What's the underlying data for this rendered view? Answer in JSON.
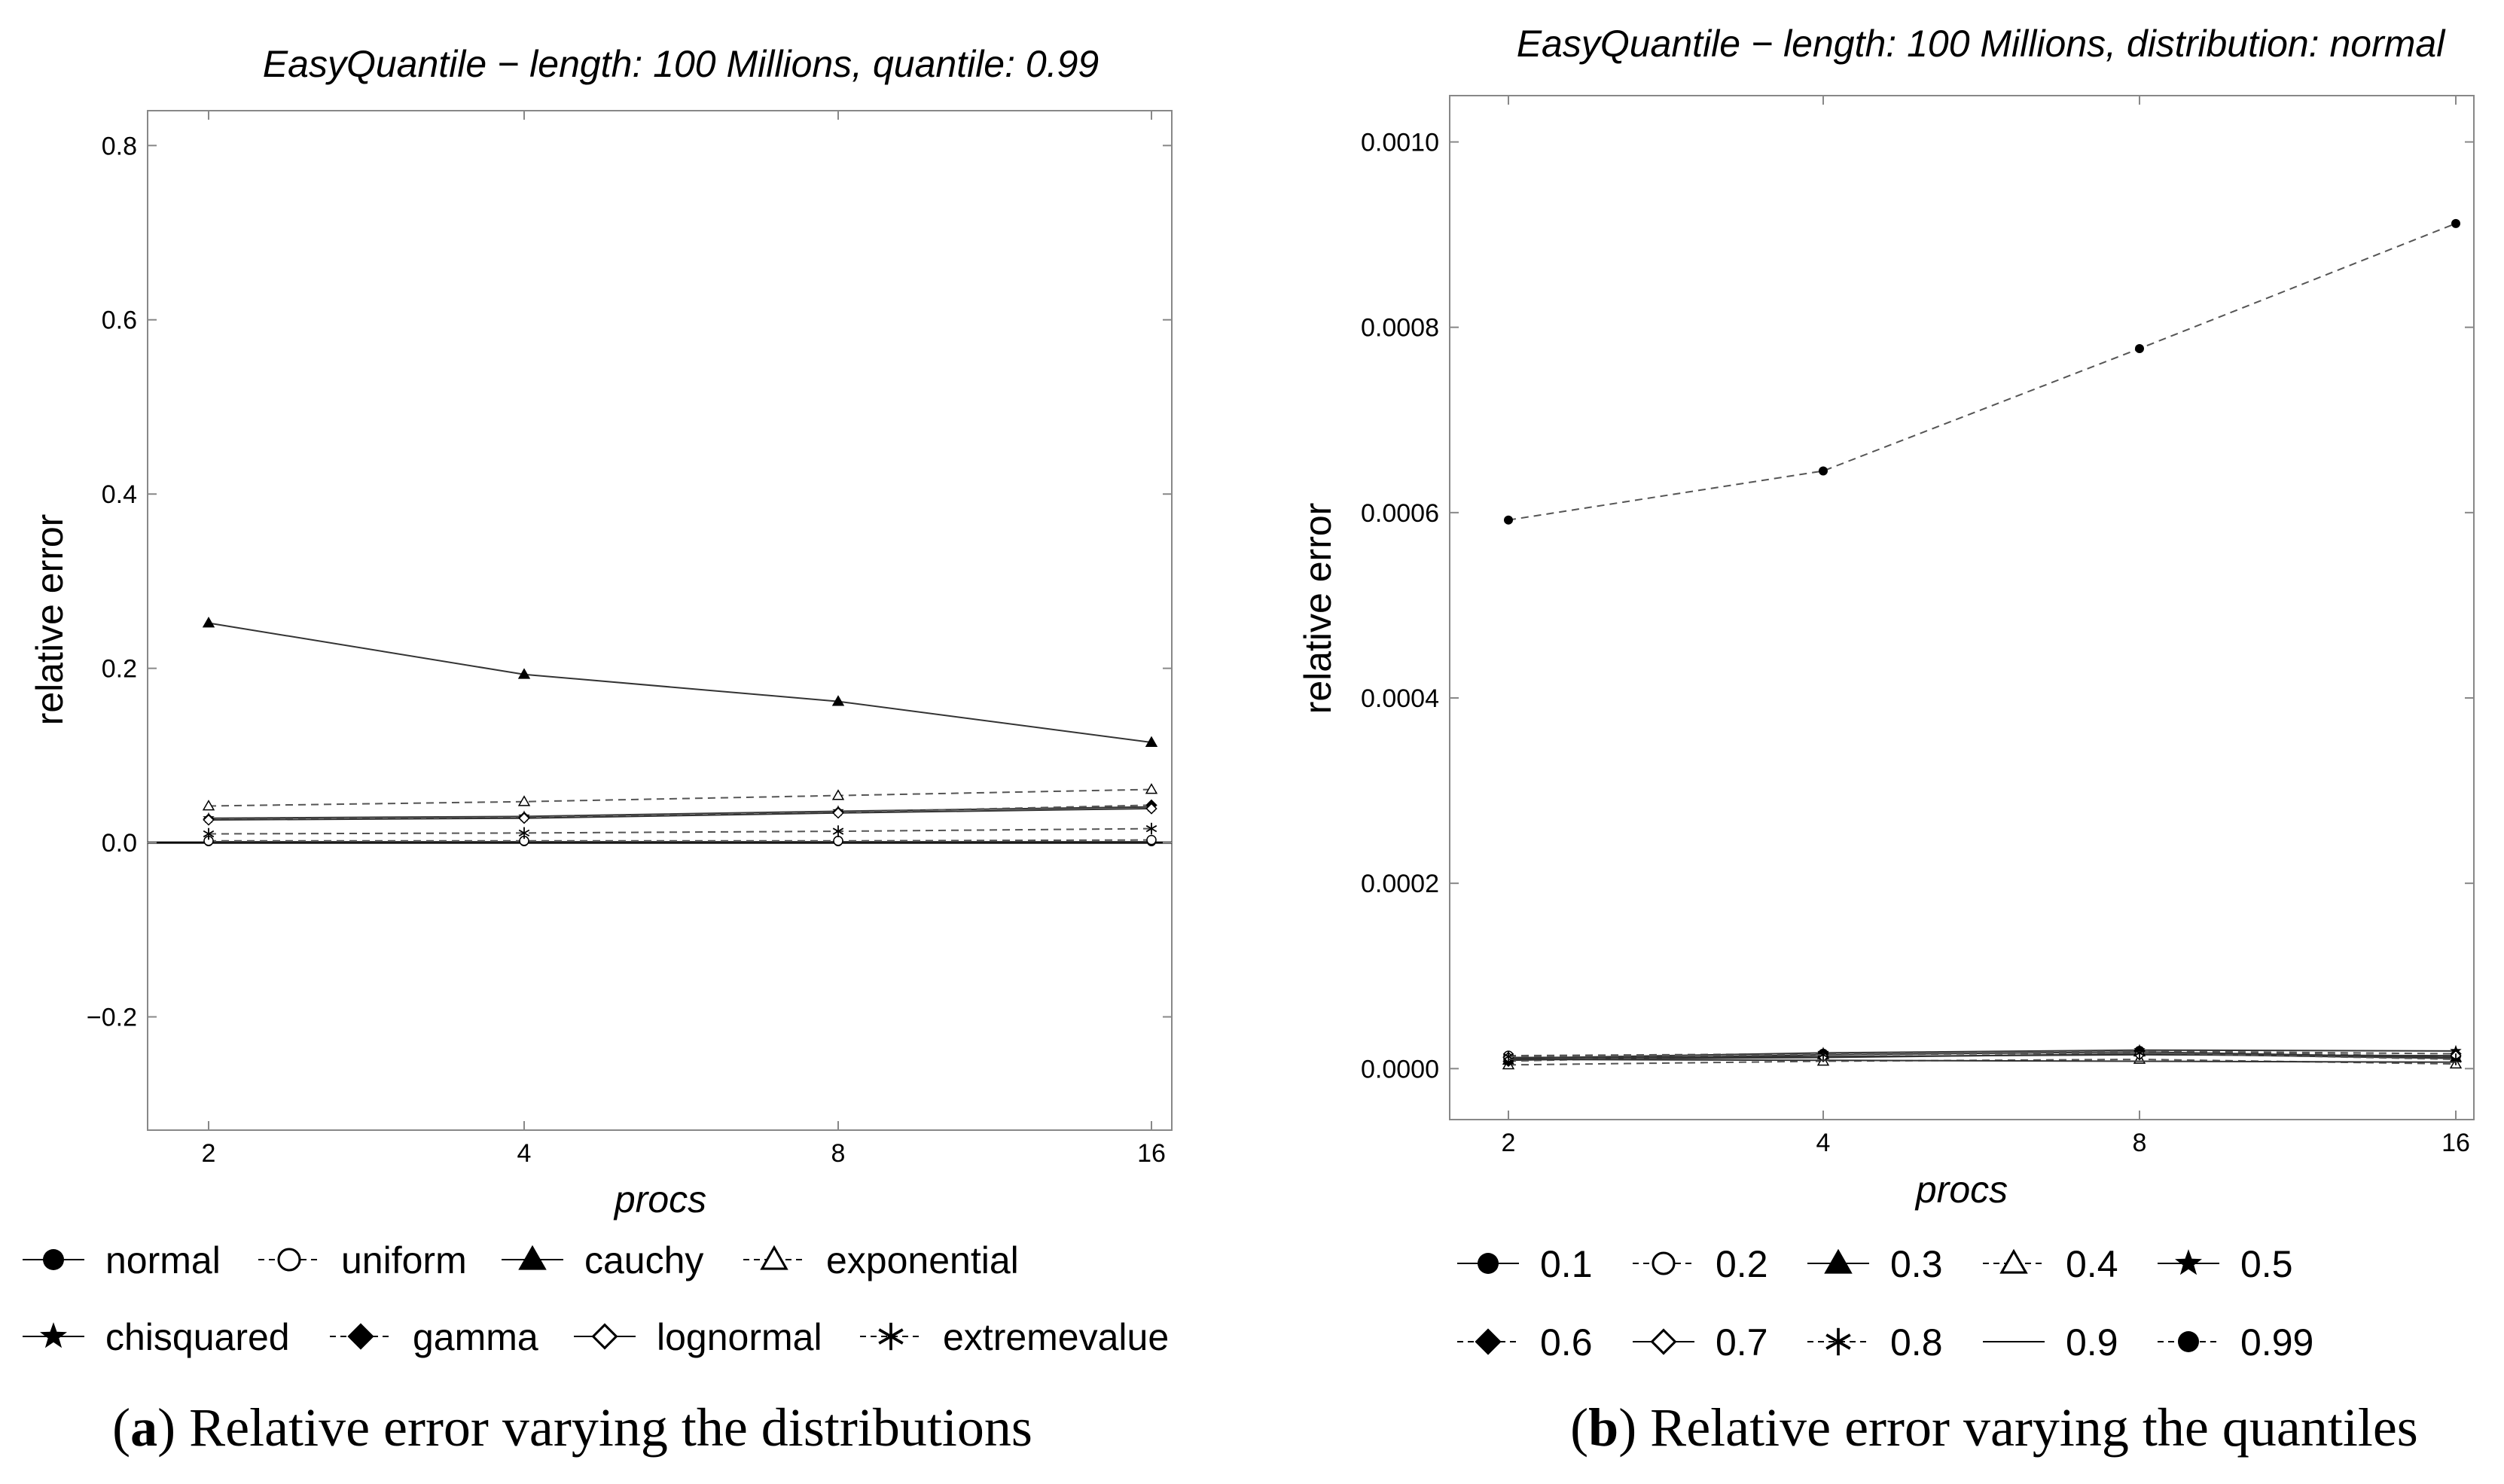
{
  "chart_data": [
    {
      "panel": "a",
      "type": "line",
      "title": "EasyQuantile − length: 100 Millions, quantile: 0.99",
      "xlabel": "procs",
      "ylabel": "relative error",
      "categories": [
        "2",
        "4",
        "8",
        "16"
      ],
      "ylim": [
        -0.33,
        0.84
      ],
      "yticks": [
        "-0.2",
        "0.0",
        "0.2",
        "0.4",
        "0.6",
        "0.8"
      ],
      "ytick_labels": [
        "−0.2",
        "0.0",
        "0.2",
        "0.4",
        "0.6",
        "0.8"
      ],
      "zero_line": true,
      "series": [
        {
          "name": "normal",
          "marker": "filled-circle",
          "dash": "solid",
          "values": [
            0.001,
            0.001,
            0.001,
            0.001
          ]
        },
        {
          "name": "uniform",
          "marker": "open-circle",
          "dash": "dashed",
          "values": [
            0.002,
            0.002,
            0.002,
            0.003
          ]
        },
        {
          "name": "cauchy",
          "marker": "filled-triangle",
          "dash": "solid",
          "values": [
            0.252,
            0.193,
            0.162,
            0.115
          ]
        },
        {
          "name": "exponential",
          "marker": "open-triangle",
          "dash": "dashed",
          "values": [
            0.042,
            0.047,
            0.054,
            0.061
          ]
        },
        {
          "name": "chisquared",
          "marker": "filled-star",
          "dash": "solid",
          "values": [
            0.028,
            0.03,
            0.036,
            0.041
          ]
        },
        {
          "name": "gamma",
          "marker": "filled-diamond",
          "dash": "dashed",
          "values": [
            0.027,
            0.029,
            0.035,
            0.043
          ]
        },
        {
          "name": "lognormal",
          "marker": "open-diamond",
          "dash": "solid",
          "values": [
            0.026,
            0.028,
            0.034,
            0.039
          ]
        },
        {
          "name": "extremevalue",
          "marker": "asterisk",
          "dash": "dashed",
          "values": [
            0.01,
            0.011,
            0.013,
            0.016
          ]
        }
      ],
      "legend_rows": [
        [
          "normal",
          "uniform",
          "cauchy",
          "exponential"
        ],
        [
          "chisquared",
          "gamma",
          "lognormal",
          "extremevalue"
        ]
      ],
      "caption_letter": "a",
      "caption_text": ") Relative error varying the distributions"
    },
    {
      "panel": "b",
      "type": "line",
      "title": "EasyQuantile − length: 100 Millions, distribution: normal",
      "xlabel": "procs",
      "ylabel": "relative error",
      "categories": [
        "2",
        "4",
        "8",
        "16"
      ],
      "ylim": [
        -5.5e-05,
        0.00105
      ],
      "yticks": [
        "0",
        "0.0002",
        "0.0004",
        "0.0006",
        "0.0008",
        "0.001"
      ],
      "ytick_labels": [
        "0.0000",
        "0.0002",
        "0.0004",
        "0.0006",
        "0.0008",
        "0.0010"
      ],
      "zero_line": false,
      "series": [
        {
          "name": "0.1",
          "marker": "filled-circle",
          "dash": "solid",
          "values": [
            1e-05,
            1.2e-05,
            1.6e-05,
            1.1e-05
          ]
        },
        {
          "name": "0.2",
          "marker": "open-circle",
          "dash": "dashed",
          "values": [
            1.4e-05,
            1.6e-05,
            1.9e-05,
            1.3e-05
          ]
        },
        {
          "name": "0.3",
          "marker": "filled-triangle",
          "dash": "solid",
          "values": [
            9e-06,
            1.5e-05,
            1.8e-05,
            1.2e-05
          ]
        },
        {
          "name": "0.4",
          "marker": "open-triangle",
          "dash": "dashed",
          "values": [
            4e-06,
            8e-06,
            1e-05,
            5e-06
          ]
        },
        {
          "name": "0.5",
          "marker": "filled-star",
          "dash": "solid",
          "values": [
            1.1e-05,
            1.7e-05,
            2e-05,
            1.9e-05
          ]
        },
        {
          "name": "0.6",
          "marker": "filled-diamond",
          "dash": "dashed",
          "values": [
            8e-06,
            1.6e-05,
            1.9e-05,
            1.6e-05
          ]
        },
        {
          "name": "0.7",
          "marker": "open-diamond",
          "dash": "solid",
          "values": [
            1.2e-05,
            1.3e-05,
            1.5e-05,
            1.4e-05
          ]
        },
        {
          "name": "0.8",
          "marker": "asterisk",
          "dash": "dashed",
          "values": [
            1.3e-05,
            1.5e-05,
            1.7e-05,
            1e-05
          ]
        },
        {
          "name": "0.9",
          "marker": "none",
          "dash": "solid",
          "values": [
            1e-05,
            9e-06,
            8e-06,
            7e-06
          ]
        },
        {
          "name": "0.99",
          "marker": "filled-circle",
          "dash": "dashed",
          "values": [
            0.000592,
            0.000645,
            0.000777,
            0.000912
          ]
        }
      ],
      "legend_rows": [
        [
          "0.1",
          "0.2",
          "0.3",
          "0.4",
          "0.5"
        ],
        [
          "0.6",
          "0.7",
          "0.8",
          "0.9",
          "0.99"
        ]
      ],
      "caption_letter": "b",
      "caption_text": ") Relative error varying the quantiles"
    }
  ]
}
